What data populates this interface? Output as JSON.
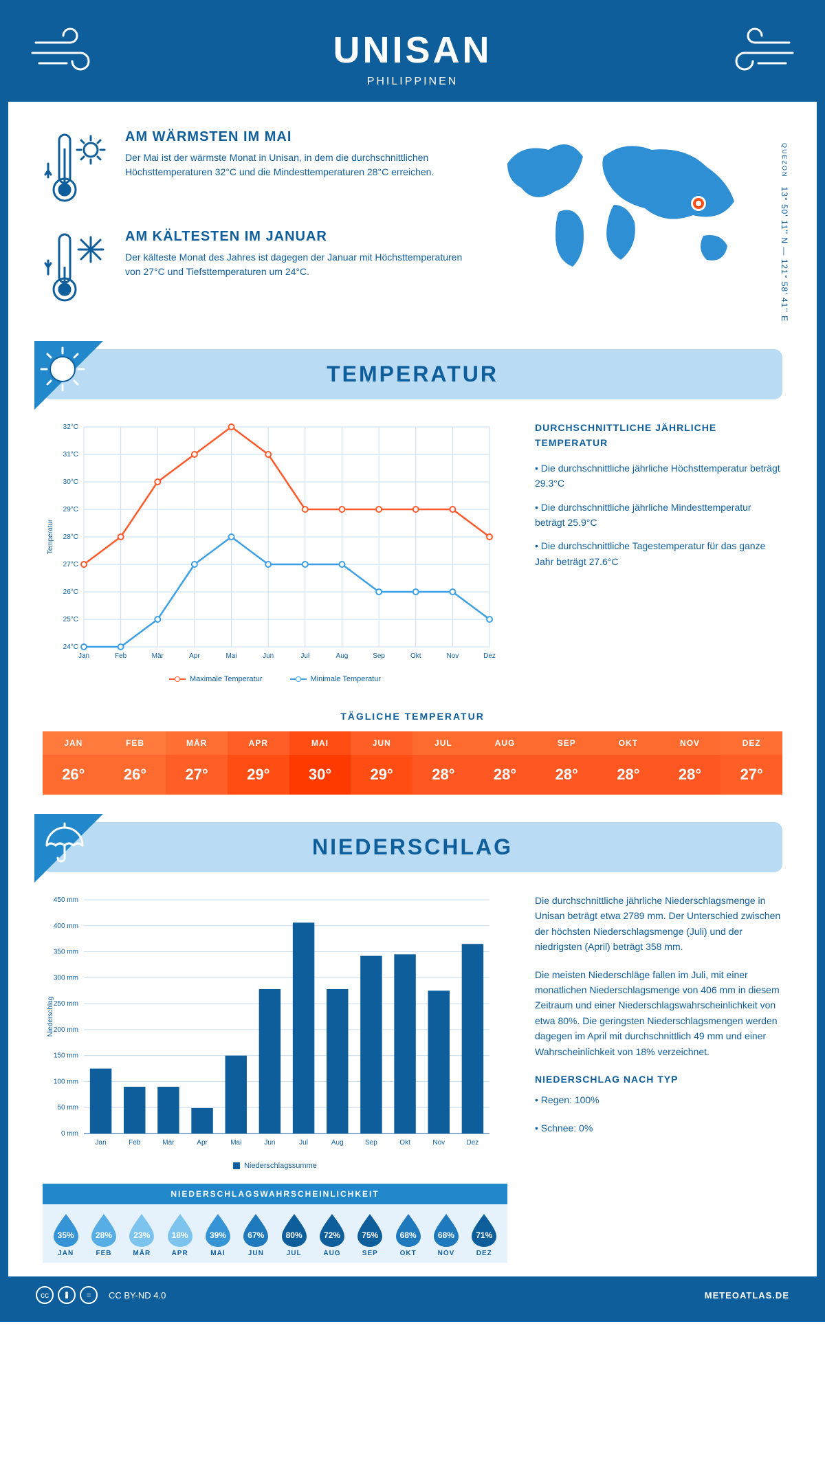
{
  "header": {
    "city": "UNISAN",
    "country": "PHILIPPINEN"
  },
  "coords": {
    "region": "QUEZON",
    "lat": "13° 50' 11'' N",
    "lon": "121° 58' 41'' E"
  },
  "facts": {
    "warm": {
      "title": "AM WÄRMSTEN IM MAI",
      "text": "Der Mai ist der wärmste Monat in Unisan, in dem die durchschnittlichen Höchsttemperaturen 32°C und die Mindesttemperaturen 28°C erreichen."
    },
    "cold": {
      "title": "AM KÄLTESTEN IM JANUAR",
      "text": "Der kälteste Monat des Jahres ist dagegen der Januar mit Höchsttemperaturen von 27°C und Tiefsttemperaturen um 24°C."
    }
  },
  "sections": {
    "temp": "TEMPERATUR",
    "precip": "NIEDERSCHLAG"
  },
  "months": [
    "Jan",
    "Feb",
    "Mär",
    "Apr",
    "Mai",
    "Jun",
    "Jul",
    "Aug",
    "Sep",
    "Okt",
    "Nov",
    "Dez"
  ],
  "months_upper": [
    "JAN",
    "FEB",
    "MÄR",
    "APR",
    "MAI",
    "JUN",
    "JUL",
    "AUG",
    "SEP",
    "OKT",
    "NOV",
    "DEZ"
  ],
  "temp_chart": {
    "type": "line",
    "ylabel": "Temperatur",
    "ymin": 24,
    "ymax": 32,
    "ystep": 1,
    "ysuffix": "°C",
    "max_series": [
      27,
      28,
      30,
      31,
      32,
      31,
      29,
      29,
      29,
      29,
      29,
      28
    ],
    "min_series": [
      24,
      24,
      25,
      27,
      28,
      27,
      27,
      27,
      26,
      26,
      26,
      25
    ],
    "max_color": "#ff5a2b",
    "min_color": "#3da0e6",
    "grid_color": "#c9def0",
    "legend_max": "Maximale Temperatur",
    "legend_min": "Minimale Temperatur"
  },
  "temp_info": {
    "title": "DURCHSCHNITTLICHE JÄHRLICHE TEMPERATUR",
    "b1": "• Die durchschnittliche jährliche Höchsttemperatur beträgt 29.3°C",
    "b2": "• Die durchschnittliche jährliche Mindesttemperatur beträgt 25.9°C",
    "b3": "• Die durchschnittliche Tagestemperatur für das ganze Jahr beträgt 27.6°C"
  },
  "daily": {
    "title": "TÄGLICHE TEMPERATUR",
    "values": [
      "26°",
      "26°",
      "27°",
      "29°",
      "30°",
      "29°",
      "28°",
      "28°",
      "28°",
      "28°",
      "28°",
      "27°"
    ],
    "head_colors": [
      "#ff7b3d",
      "#ff7b3d",
      "#ff6f33",
      "#ff5e26",
      "#ff4d14",
      "#ff5e26",
      "#ff6a2f",
      "#ff6a2f",
      "#ff6a2f",
      "#ff6a2f",
      "#ff6a2f",
      "#ff6f33"
    ],
    "val_colors": [
      "#ff6a2f",
      "#ff6a2f",
      "#ff5e26",
      "#ff4d14",
      "#ff3a00",
      "#ff4d14",
      "#ff5722",
      "#ff5722",
      "#ff5722",
      "#ff5722",
      "#ff5722",
      "#ff5e26"
    ]
  },
  "precip_chart": {
    "type": "bar",
    "ylabel": "Niederschlag",
    "ymin": 0,
    "ymax": 450,
    "ystep": 50,
    "ysuffix": " mm",
    "values": [
      125,
      90,
      90,
      49,
      150,
      278,
      406,
      278,
      342,
      345,
      275,
      365
    ],
    "bar_color": "#0f5e9c",
    "legend": "Niederschlagssumme"
  },
  "precip_info": {
    "p1": "Die durchschnittliche jährliche Niederschlagsmenge in Unisan beträgt etwa 2789 mm. Der Unterschied zwischen der höchsten Niederschlagsmenge (Juli) und der niedrigsten (April) beträgt 358 mm.",
    "p2": "Die meisten Niederschläge fallen im Juli, mit einer monatlichen Niederschlagsmenge von 406 mm in diesem Zeitraum und einer Niederschlagswahrscheinlichkeit von etwa 80%. Die geringsten Niederschlagsmengen werden dagegen im April mit durchschnittlich 49 mm und einer Wahrscheinlichkeit von 18% verzeichnet.",
    "type_title": "NIEDERSCHLAG NACH TYP",
    "rain": "• Regen: 100%",
    "snow": "• Schnee: 0%"
  },
  "prob": {
    "title": "NIEDERSCHLAGSWAHRSCHEINLICHKEIT",
    "values": [
      35,
      28,
      23,
      18,
      39,
      67,
      80,
      72,
      75,
      68,
      68,
      71
    ]
  },
  "footer": {
    "license": "CC BY-ND 4.0",
    "site": "METEOATLAS.DE"
  },
  "colors": {
    "brand": "#0f5e9c",
    "banner": "#b9dbf4",
    "accent": "#2288cc"
  }
}
